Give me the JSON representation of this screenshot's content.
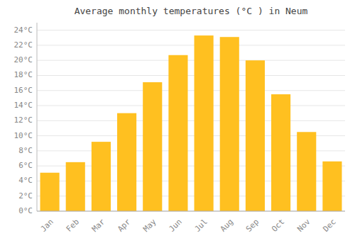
{
  "chart_data": {
    "type": "bar",
    "title": "Average monthly temperatures (°C ) in Neum",
    "categories": [
      "Jan",
      "Feb",
      "Mar",
      "Apr",
      "May",
      "Jun",
      "Jul",
      "Aug",
      "Sep",
      "Oct",
      "Nov",
      "Dec"
    ],
    "values": [
      5.1,
      6.5,
      9.2,
      13.0,
      17.1,
      20.7,
      23.3,
      23.1,
      20.0,
      15.5,
      10.5,
      6.6
    ],
    "color": "#FFC020",
    "ylim": [
      0,
      25
    ],
    "yticks": [
      {
        "value": 0,
        "label": "0°C"
      },
      {
        "value": 2,
        "label": "2°C"
      },
      {
        "value": 4,
        "label": "4°C"
      },
      {
        "value": 6,
        "label": "6°C"
      },
      {
        "value": 8,
        "label": "8°C"
      },
      {
        "value": 10,
        "label": "10°C"
      },
      {
        "value": 12,
        "label": "12°C"
      },
      {
        "value": 14,
        "label": "14°C"
      },
      {
        "value": 16,
        "label": "16°C"
      },
      {
        "value": 18,
        "label": "18°C"
      },
      {
        "value": 20,
        "label": "20°C"
      },
      {
        "value": 22,
        "label": "22°C"
      },
      {
        "value": 24,
        "label": "24°C"
      }
    ],
    "grid": true
  }
}
